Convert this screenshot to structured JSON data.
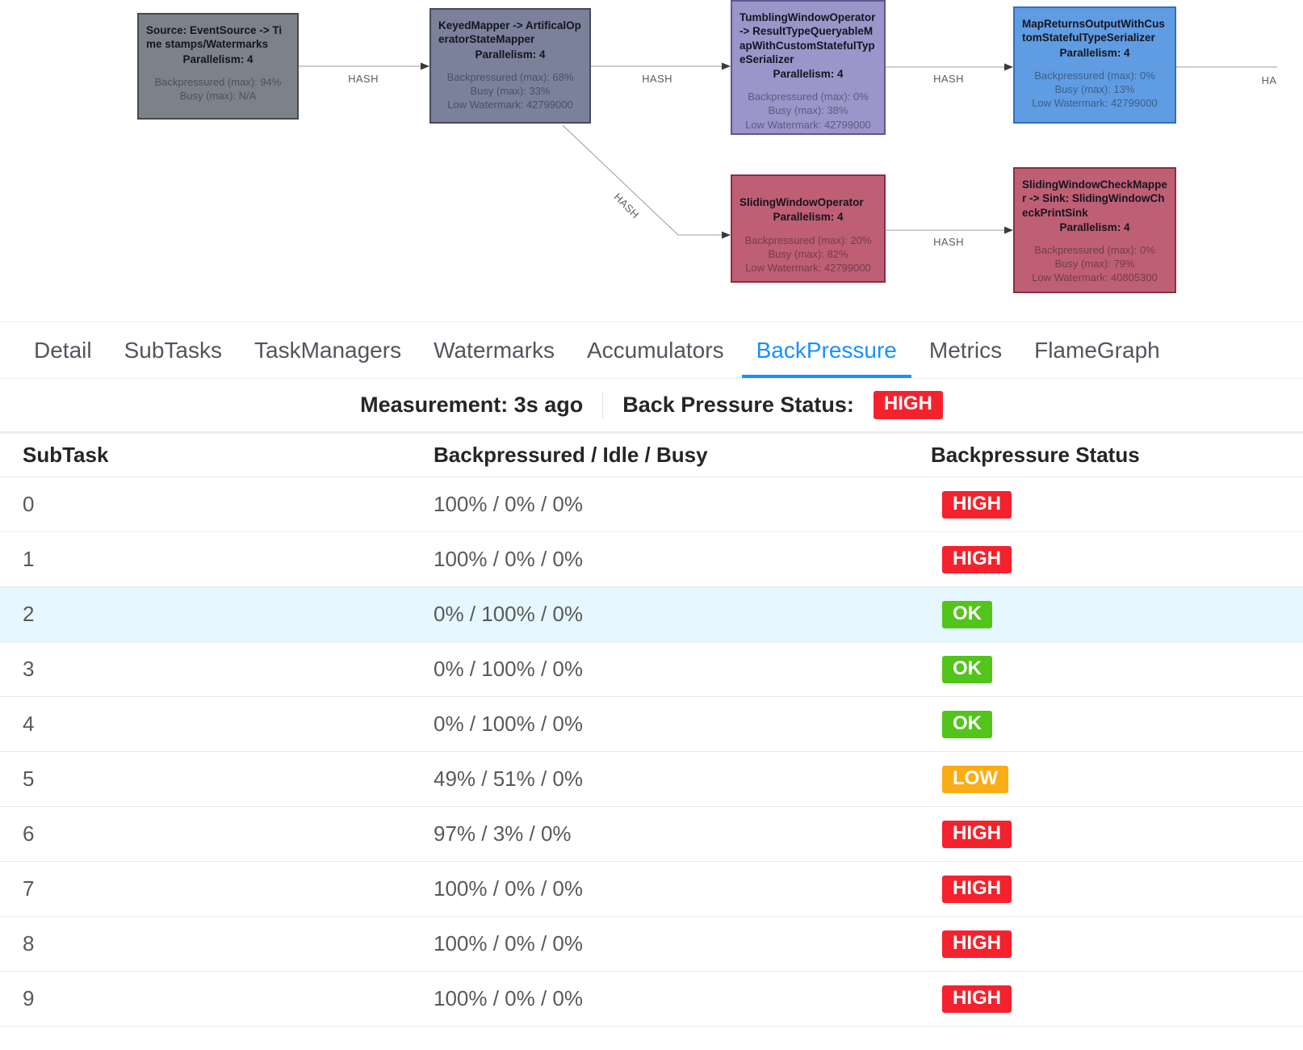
{
  "graph": {
    "parallelism_label": "Parallelism: 4",
    "nodes": [
      {
        "title": "Source: EventSource -> Time stamps/Watermarks",
        "parallelism": "Parallelism: 4",
        "metrics": [
          "Backpressured (max): 94%",
          "Busy (max): N/A"
        ],
        "fill": "#7d828a",
        "border": "#45494f"
      },
      {
        "title": "KeyedMapper -> ArtificalOperatorStateMapper",
        "parallelism": "Parallelism: 4",
        "metrics": [
          "Backpressured (max): 68%",
          "Busy (max): 33%",
          "Low Watermark: 42799000"
        ],
        "fill": "#7b819b",
        "border": "#434a63"
      },
      {
        "title": "TumblingWindowOperator -> ResultTypeQueryableMapWithCustomStatefulTypeSerializer",
        "parallelism": "Parallelism: 4",
        "metrics": [
          "Backpressured (max): 0%",
          "Busy (max): 38%",
          "Low Watermark: 42799000"
        ],
        "fill": "#9b95c9",
        "border": "#5d5791"
      },
      {
        "title": "MapReturnsOutputWithCustomStatefulTypeSerializer",
        "parallelism": "Parallelism: 4",
        "metrics": [
          "Backpressured (max): 0%",
          "Busy (max): 13%",
          "Low Watermark: 42799000"
        ],
        "fill": "#5f9ce2",
        "border": "#2f6fc0"
      },
      {
        "title": "SlidingWindowOperator",
        "parallelism": "Parallelism: 4",
        "metrics": [
          "Backpressured (max): 20%",
          "Busy (max): 82%",
          "Low Watermark: 42799000"
        ],
        "fill": "#bf5f74",
        "border": "#8c2e42"
      },
      {
        "title": "SlidingWindowCheckMapper -> Sink: SlidingWindowCheckPrintSink",
        "parallelism": "Parallelism: 4",
        "metrics": [
          "Backpressured (max): 0%",
          "Busy (max): 79%",
          "Low Watermark: 40805300"
        ],
        "fill": "#bf5f74",
        "border": "#8c2e42"
      }
    ],
    "edges": [
      {
        "label": "HASH"
      },
      {
        "label": "HASH"
      },
      {
        "label": "HASH"
      },
      {
        "label": "HA"
      },
      {
        "label": "HASH"
      },
      {
        "label": "HASH"
      }
    ]
  },
  "tabs": {
    "active": "BackPressure",
    "items": [
      {
        "label": "Detail"
      },
      {
        "label": "SubTasks"
      },
      {
        "label": "TaskManagers"
      },
      {
        "label": "Watermarks"
      },
      {
        "label": "Accumulators"
      },
      {
        "label": "BackPressure"
      },
      {
        "label": "Metrics"
      },
      {
        "label": "FlameGraph"
      }
    ]
  },
  "measurement": {
    "time_label": "Measurement: 3s ago",
    "status_label": "Back Pressure Status:",
    "status": "HIGH"
  },
  "table": {
    "headers": [
      "SubTask",
      "Backpressured / Idle / Busy",
      "Backpressure Status"
    ],
    "status_colors": {
      "HIGH": "#f5222d",
      "OK": "#52c41a",
      "LOW": "#faad14"
    },
    "rows": [
      {
        "subtask": "0",
        "ratio": "100% / 0% / 0%",
        "status": "HIGH",
        "highlighted": false
      },
      {
        "subtask": "1",
        "ratio": "100% / 0% / 0%",
        "status": "HIGH",
        "highlighted": false
      },
      {
        "subtask": "2",
        "ratio": "0% / 100% / 0%",
        "status": "OK",
        "highlighted": true
      },
      {
        "subtask": "3",
        "ratio": "0% / 100% / 0%",
        "status": "OK",
        "highlighted": false
      },
      {
        "subtask": "4",
        "ratio": "0% / 100% / 0%",
        "status": "OK",
        "highlighted": false
      },
      {
        "subtask": "5",
        "ratio": "49% / 51% / 0%",
        "status": "LOW",
        "highlighted": false
      },
      {
        "subtask": "6",
        "ratio": "97% / 3% / 0%",
        "status": "HIGH",
        "highlighted": false
      },
      {
        "subtask": "7",
        "ratio": "100% / 0% / 0%",
        "status": "HIGH",
        "highlighted": false
      },
      {
        "subtask": "8",
        "ratio": "100% / 0% / 0%",
        "status": "HIGH",
        "highlighted": false
      },
      {
        "subtask": "9",
        "ratio": "100% / 0% / 0%",
        "status": "HIGH",
        "highlighted": false
      }
    ]
  },
  "colors": {
    "accent": "#1890ff",
    "row_highlight": "#e6f7ff",
    "high": "#f5222d",
    "ok": "#52c41a",
    "low": "#faad14"
  }
}
